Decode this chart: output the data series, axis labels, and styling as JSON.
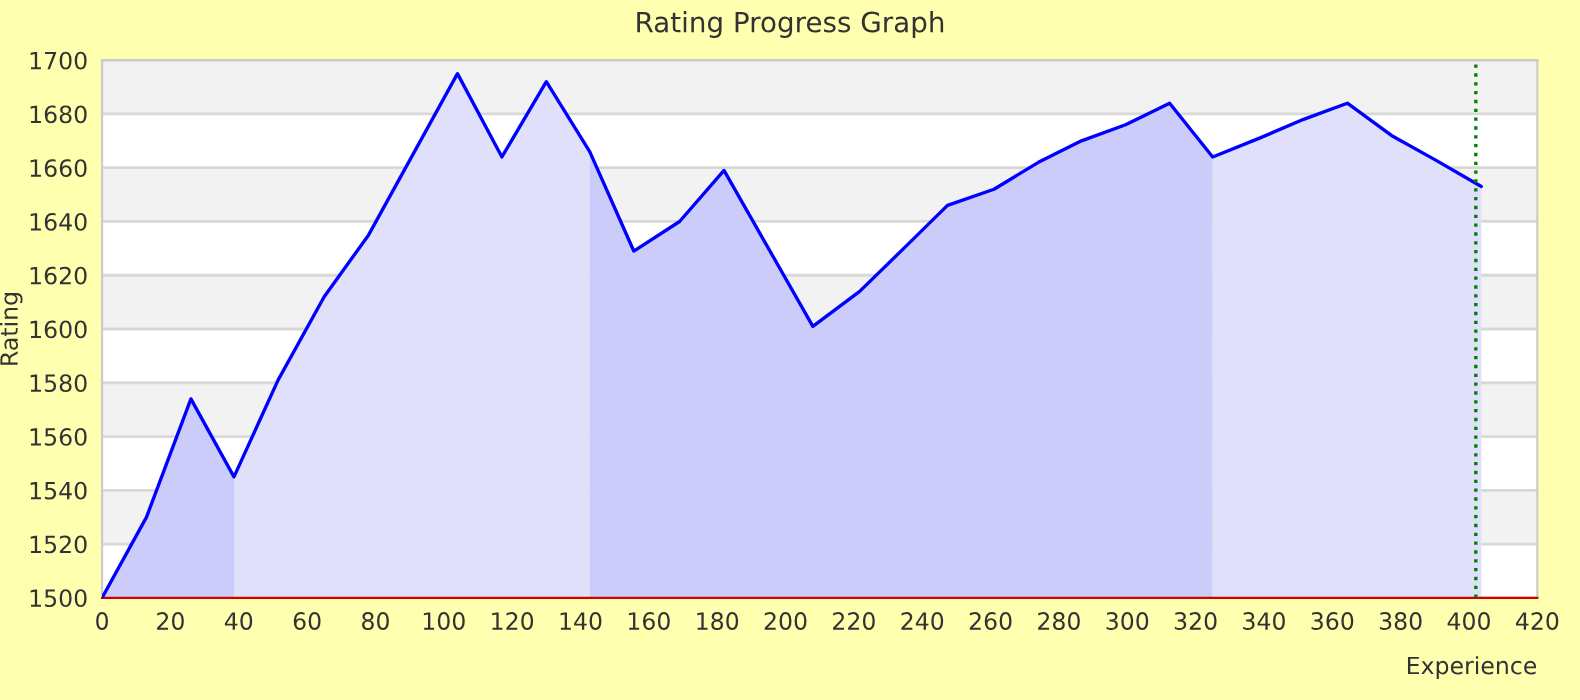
{
  "chart_data": {
    "type": "area",
    "title": "Rating Progress Graph",
    "xlabel": "Experience",
    "ylabel": "Rating",
    "xlim": [
      0,
      420
    ],
    "xticks": [
      0,
      20,
      40,
      60,
      80,
      100,
      120,
      140,
      160,
      180,
      200,
      220,
      240,
      260,
      280,
      300,
      320,
      340,
      360,
      380,
      400,
      420
    ],
    "ylim": [
      1500,
      1700
    ],
    "yticks": [
      1500,
      1520,
      1540,
      1560,
      1580,
      1600,
      1620,
      1640,
      1660,
      1680,
      1700
    ],
    "grid": "y",
    "legend": false,
    "marker": "none",
    "line_style": "solid",
    "bands": [
      {
        "axis": "y",
        "from": 1520,
        "to": 1540,
        "color": "#f2f2f2"
      },
      {
        "axis": "y",
        "from": 1560,
        "to": 1580,
        "color": "#f2f2f2"
      },
      {
        "axis": "y",
        "from": 1600,
        "to": 1620,
        "color": "#f2f2f2"
      },
      {
        "axis": "y",
        "from": 1640,
        "to": 1660,
        "color": "#f2f2f2"
      },
      {
        "axis": "y",
        "from": 1680,
        "to": 1700,
        "color": "#f2f2f2"
      }
    ],
    "ref_lines": [
      {
        "axis": "x",
        "value": 402,
        "color": "#008000",
        "line_style": "dotted"
      }
    ],
    "series": [
      {
        "color": "#ccccfa",
        "x": [
          0,
          13,
          26,
          38.6
        ],
        "values": [
          1500,
          1530,
          1574,
          1545
        ]
      },
      {
        "color": "#e0e0fa",
        "x": [
          38.6,
          51.5,
          65,
          78,
          104,
          117,
          130,
          142.7
        ],
        "values": [
          1545,
          1581,
          1612,
          1635,
          1695,
          1664,
          1692,
          1666
        ]
      },
      {
        "color": "#ccccfa",
        "x": [
          142.7,
          155.6,
          169,
          182,
          208,
          221.7,
          234.6,
          247.4,
          261,
          274,
          286.6,
          299.5,
          312.4,
          325
        ],
        "values": [
          1666,
          1629,
          1640,
          1659,
          1601,
          1614,
          1630,
          1646,
          1652,
          1662,
          1670,
          1676,
          1684,
          1664
        ]
      },
      {
        "color": "#e0e0fa",
        "x": [
          325,
          338.7,
          351.6,
          364.4,
          377.3,
          390,
          403.6
        ],
        "values": [
          1664,
          1671,
          1678,
          1684,
          1672,
          1663,
          1653
        ]
      },
      {
        "type": "line",
        "color": "#0000ff",
        "x": [
          0,
          13,
          26,
          38.6,
          51.5,
          65,
          78,
          104,
          117,
          130,
          142.7,
          155.6,
          169,
          182,
          208,
          221.7,
          234.6,
          247.4,
          261,
          274,
          286.6,
          299.5,
          312.4,
          325,
          338.7,
          351.6,
          364.4,
          377.3,
          390,
          403.6
        ],
        "values": [
          1500,
          1530,
          1574,
          1545,
          1581,
          1612,
          1635,
          1695,
          1664,
          1692,
          1666,
          1629,
          1640,
          1659,
          1601,
          1614,
          1630,
          1646,
          1652,
          1662,
          1670,
          1676,
          1684,
          1664,
          1671,
          1678,
          1684,
          1672,
          1663,
          1653
        ]
      }
    ]
  }
}
